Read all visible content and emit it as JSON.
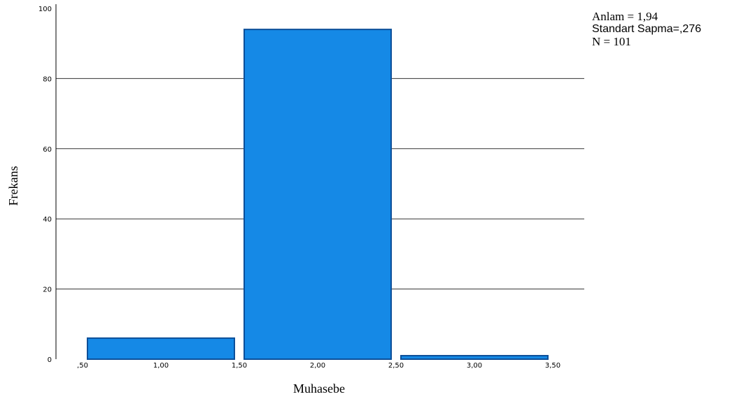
{
  "chart_data": {
    "type": "bar",
    "xlabel": "Muhasebe",
    "ylabel": "Frekans",
    "x_ticks": [
      ",50",
      "1,00",
      "1,50",
      "2,00",
      "2,50",
      "3,00",
      "3,50"
    ],
    "x_tick_values": [
      0.5,
      1.0,
      1.5,
      2.0,
      2.5,
      3.0,
      3.5
    ],
    "y_ticks": [
      "0",
      "20",
      "40",
      "60",
      "80",
      "100"
    ],
    "y_tick_values": [
      0,
      20,
      40,
      60,
      80,
      100
    ],
    "xlim": [
      0.5,
      3.5
    ],
    "ylim": [
      0,
      100
    ],
    "grid": "horizontal",
    "bar_color": "#1589e6",
    "bar_edge_color": "#0c4f99",
    "bins": [
      {
        "start": 0.5,
        "end": 1.5,
        "value": 6
      },
      {
        "start": 1.5,
        "end": 2.5,
        "value": 94
      },
      {
        "start": 2.5,
        "end": 3.5,
        "value": 1
      }
    ],
    "stats": {
      "mean_line": "Anlam = 1,94",
      "std_line": "Standart Sapma=,276",
      "n_line": "N = 101"
    }
  }
}
